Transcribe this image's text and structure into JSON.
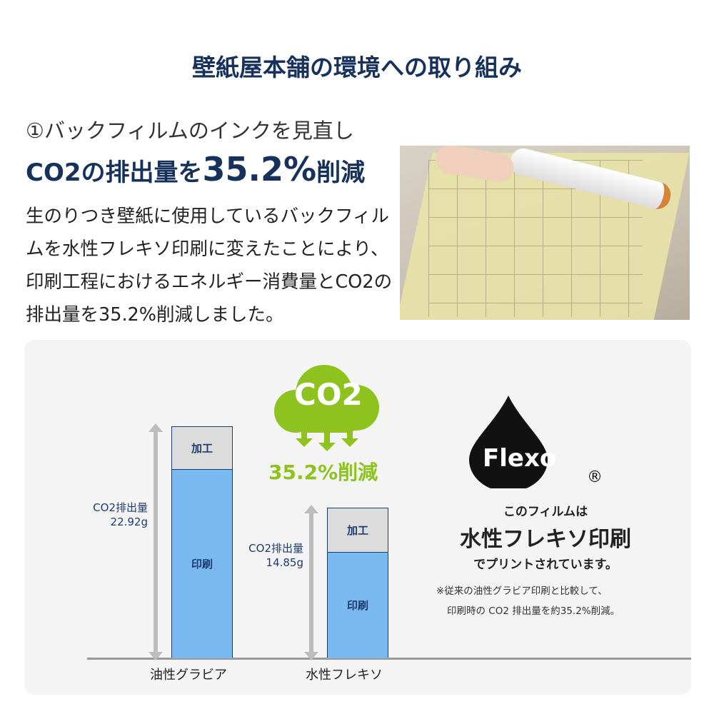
{
  "title": "壁紙屋本舗の環境への取り組み",
  "subheading": "①バックフィルムのインクを見直し",
  "headline": {
    "pre": "CO2の排出量を",
    "value": "35.2%",
    "post": "削減"
  },
  "body": "生のりつき壁紙に使用しているバックフィルムを水性フレキソ印刷に変えたことにより、印刷工程におけるエネルギー消費量とCO2の排出量を35.2%削減しました。",
  "cloud": {
    "label": "CO2",
    "reduction": "35.2%削減",
    "color": "#8dc21f"
  },
  "flexo": {
    "logo": "Flexo",
    "reg": "®",
    "line1": "このフィルムは",
    "line2": "水性フレキソ印刷",
    "line3": "でプリントされています。",
    "note1": "※従来の油性グラビア印刷と比較して、",
    "note2": "印刷時の CO2 排出量を約35.2%削減。"
  },
  "chart_data": {
    "type": "bar",
    "stacked": true,
    "categories": [
      "油性グラビア",
      "水性フレキソ"
    ],
    "series": [
      {
        "name": "印刷",
        "values": [
          18.7,
          10.5
        ],
        "color": "#7ab8f0"
      },
      {
        "name": "加工",
        "values": [
          4.2,
          4.35
        ],
        "color": "#dcdcdc"
      }
    ],
    "totals": [
      {
        "label": "CO2排出量",
        "value": "22.92g"
      },
      {
        "label": "CO2排出量",
        "value": "14.85g"
      }
    ],
    "ylim": [
      0,
      22.92
    ]
  }
}
